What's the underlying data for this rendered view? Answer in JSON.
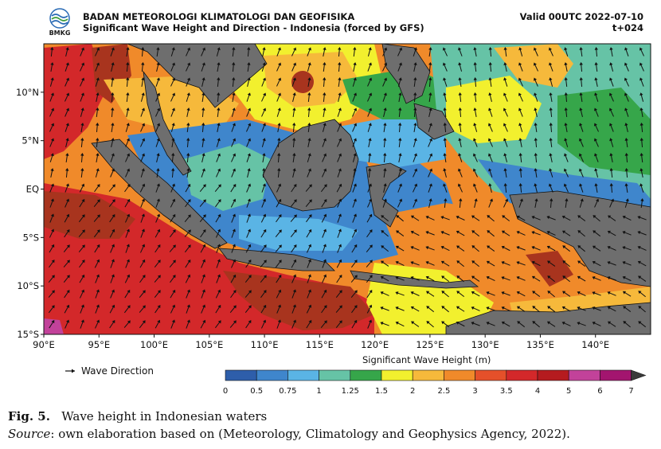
{
  "header": {
    "org": "BADAN METEOROLOGI KLIMATOLOGI DAN GEOFISIKA",
    "subtitle": "Significant Wave Height and Direction - Indonesia (forced by GFS)",
    "valid": "Valid 00UTC 2022-07-10",
    "step": "t+024"
  },
  "logo": {
    "text": "BMKG"
  },
  "map": {
    "lon_range": [
      90,
      145
    ],
    "lat_range": [
      -15,
      15
    ],
    "x_ticks": [
      "90°E",
      "95°E",
      "100°E",
      "105°E",
      "110°E",
      "115°E",
      "120°E",
      "125°E",
      "130°E",
      "135°E",
      "140°E"
    ],
    "y_ticks": [
      "10°N",
      "5°N",
      "EQ",
      "5°S",
      "10°S",
      "15°S"
    ],
    "land_color": "#6e6e6e",
    "arrow_color": "#111111"
  },
  "legend": {
    "wave_direction_label": "Wave Direction",
    "colorbar_title": "Significant Wave Height (m)",
    "ticks": [
      "0",
      "0.5",
      "0.75",
      "1",
      "1.25",
      "1.5",
      "2",
      "2.5",
      "3",
      "3.5",
      "4",
      "5",
      "6",
      "7"
    ],
    "colors": [
      "#2e5eaa",
      "#3f86cc",
      "#5ab4e5",
      "#66c3a6",
      "#36a64a",
      "#f2f02e",
      "#f6b93b",
      "#f08a2a",
      "#e5502a",
      "#d3282a",
      "#b51b1f",
      "#c2429a",
      "#a3156f"
    ],
    "extend_color": "#3a3a3a"
  },
  "caption": {
    "fig_label": "Fig. 5.",
    "fig_text": "Wave height in Indonesian waters",
    "source_label": "Source",
    "source_text": ": own elaboration based on (Meteorology, Climatology and Geophysics Agency, 2022)."
  }
}
